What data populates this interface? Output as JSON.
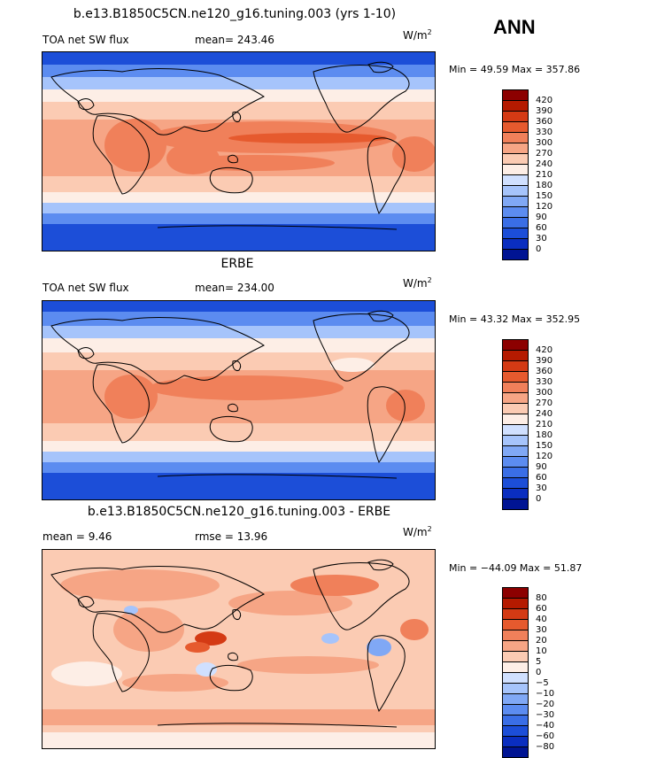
{
  "season": "ANN",
  "panels": [
    {
      "title": "b.e13.B1850C5CN.ne120_g16.tuning.003 (yrs 1-10)",
      "left_label": "TOA net SW flux",
      "stat_label": "mean=",
      "stat_value": "243.46",
      "unit_base": "W/m",
      "unit_sup": "2",
      "minmax": "Min =  49.59 Max = 357.86",
      "levels": [
        "420",
        "390",
        "360",
        "330",
        "300",
        "270",
        "240",
        "210",
        "180",
        "150",
        "120",
        "90",
        "60",
        "30",
        "0"
      ],
      "colors": [
        "#8c0000",
        "#b51a00",
        "#d43a14",
        "#e65a2e",
        "#f0805a",
        "#f6a585",
        "#fbcbb3",
        "#fdeee6",
        "#d0e0ff",
        "#a6c4fb",
        "#80a8f5",
        "#5c8cf0",
        "#3a6ee6",
        "#1c4ed8",
        "#0a2ec0",
        "#001493"
      ]
    },
    {
      "title": "ERBE",
      "left_label": "TOA net SW flux",
      "stat_label": "mean=",
      "stat_value": "234.00",
      "unit_base": "W/m",
      "unit_sup": "2",
      "minmax": "Min =  43.32 Max = 352.95",
      "levels": [
        "420",
        "390",
        "360",
        "330",
        "300",
        "270",
        "240",
        "210",
        "180",
        "150",
        "120",
        "90",
        "60",
        "30",
        "0"
      ],
      "colors": [
        "#8c0000",
        "#b51a00",
        "#d43a14",
        "#e65a2e",
        "#f0805a",
        "#f6a585",
        "#fbcbb3",
        "#fdeee6",
        "#d0e0ff",
        "#a6c4fb",
        "#80a8f5",
        "#5c8cf0",
        "#3a6ee6",
        "#1c4ed8",
        "#0a2ec0",
        "#001493"
      ]
    },
    {
      "title": "b.e13.B1850C5CN.ne120_g16.tuning.003 - ERBE",
      "left_label": "mean =    9.46",
      "stat_label": "rmse =",
      "stat_value": "13.96",
      "unit_base": "W/m",
      "unit_sup": "2",
      "minmax": "Min = −44.09 Max =  51.87",
      "levels": [
        "80",
        "60",
        "40",
        "30",
        "20",
        "10",
        "5",
        "0",
        "−5",
        "−10",
        "−20",
        "−30",
        "−40",
        "−60",
        "−80"
      ],
      "colors": [
        "#8c0000",
        "#b51a00",
        "#d43a14",
        "#e65a2e",
        "#f0805a",
        "#f6a585",
        "#fbcbb3",
        "#fdeee6",
        "#d0e0ff",
        "#a6c4fb",
        "#80a8f5",
        "#5c8cf0",
        "#3a6ee6",
        "#1c4ed8",
        "#0a2ec0",
        "#001493"
      ]
    }
  ]
}
